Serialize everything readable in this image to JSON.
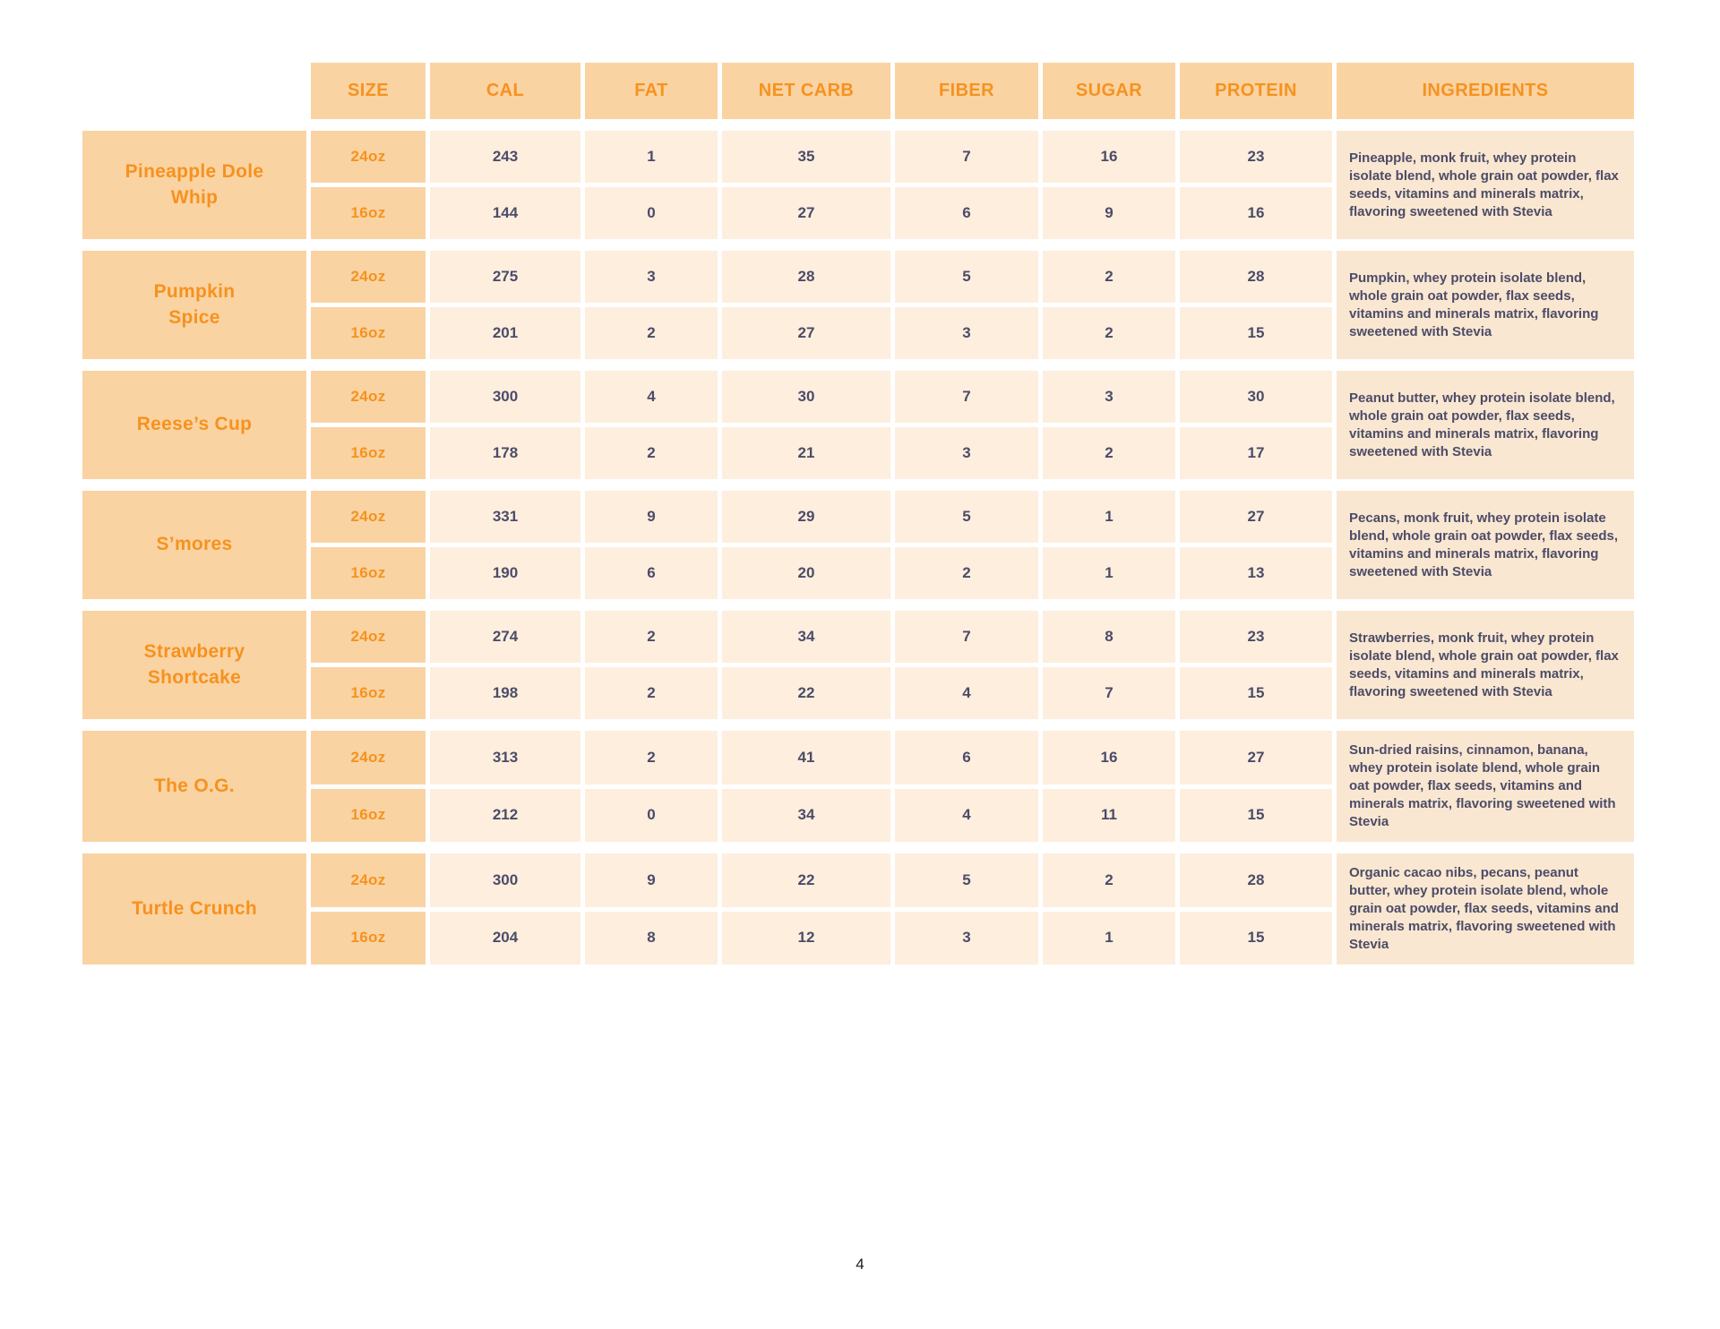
{
  "page": {
    "number": "4"
  },
  "colors": {
    "peach_medium": "#FAD3A3",
    "peach_light": "#FDEEDE",
    "peach_ingredients": "#FAE7D1",
    "orange_text": "#F6921E",
    "slate_text": "#4C4C68"
  },
  "table": {
    "columns": [
      "SIZE",
      "CAL",
      "FAT",
      "NET CARB",
      "FIBER",
      "SUGAR",
      "PROTEIN",
      "INGREDIENTS"
    ],
    "rows": [
      {
        "name": "Pineapple Dole\nWhip",
        "sizes": [
          {
            "size": "24oz",
            "cal": 243,
            "fat": 1,
            "net_carb": 35,
            "fiber": 7,
            "sugar": 16,
            "protein": 23
          },
          {
            "size": "16oz",
            "cal": 144,
            "fat": 0,
            "net_carb": 27,
            "fiber": 6,
            "sugar": 9,
            "protein": 16
          }
        ],
        "ingredients": "Pineapple, monk fruit, whey protein isolate blend, whole grain oat powder, flax seeds, vitamins and minerals matrix, flavoring sweetened with Stevia"
      },
      {
        "name": "Pumpkin\nSpice",
        "sizes": [
          {
            "size": "24oz",
            "cal": 275,
            "fat": 3,
            "net_carb": 28,
            "fiber": 5,
            "sugar": 2,
            "protein": 28
          },
          {
            "size": "16oz",
            "cal": 201,
            "fat": 2,
            "net_carb": 27,
            "fiber": 3,
            "sugar": 2,
            "protein": 15
          }
        ],
        "ingredients": "Pumpkin, whey protein isolate blend, whole grain oat powder, flax seeds, vitamins and minerals matrix, flavoring sweetened with Stevia"
      },
      {
        "name": "Reese’s Cup",
        "sizes": [
          {
            "size": "24oz",
            "cal": 300,
            "fat": 4,
            "net_carb": 30,
            "fiber": 7,
            "sugar": 3,
            "protein": 30
          },
          {
            "size": "16oz",
            "cal": 178,
            "fat": 2,
            "net_carb": 21,
            "fiber": 3,
            "sugar": 2,
            "protein": 17
          }
        ],
        "ingredients": "Peanut butter, whey protein isolate blend, whole grain oat powder, flax seeds, vitamins and minerals matrix, flavoring sweetened with Stevia"
      },
      {
        "name": "S’mores",
        "sizes": [
          {
            "size": "24oz",
            "cal": 331,
            "fat": 9,
            "net_carb": 29,
            "fiber": 5,
            "sugar": 1,
            "protein": 27
          },
          {
            "size": "16oz",
            "cal": 190,
            "fat": 6,
            "net_carb": 20,
            "fiber": 2,
            "sugar": 1,
            "protein": 13
          }
        ],
        "ingredients": "Pecans, monk fruit, whey protein isolate blend, whole grain oat powder, flax seeds, vitamins and minerals matrix, flavoring sweetened with Stevia"
      },
      {
        "name": "Strawberry\nShortcake",
        "sizes": [
          {
            "size": "24oz",
            "cal": 274,
            "fat": 2,
            "net_carb": 34,
            "fiber": 7,
            "sugar": 8,
            "protein": 23
          },
          {
            "size": "16oz",
            "cal": 198,
            "fat": 2,
            "net_carb": 22,
            "fiber": 4,
            "sugar": 7,
            "protein": 15
          }
        ],
        "ingredients": "Strawberries, monk fruit, whey protein isolate blend, whole grain oat powder, flax seeds, vitamins and minerals matrix, flavoring sweetened with Stevia"
      },
      {
        "name": "The O.G.",
        "sizes": [
          {
            "size": "24oz",
            "cal": 313,
            "fat": 2,
            "net_carb": 41,
            "fiber": 6,
            "sugar": 16,
            "protein": 27
          },
          {
            "size": "16oz",
            "cal": 212,
            "fat": 0,
            "net_carb": 34,
            "fiber": 4,
            "sugar": 11,
            "protein": 15
          }
        ],
        "ingredients": "Sun-dried raisins, cinnamon, banana, whey protein isolate blend, whole grain oat powder, flax seeds, vitamins and minerals matrix, flavoring sweetened with Stevia"
      },
      {
        "name": "Turtle Crunch",
        "sizes": [
          {
            "size": "24oz",
            "cal": 300,
            "fat": 9,
            "net_carb": 22,
            "fiber": 5,
            "sugar": 2,
            "protein": 28
          },
          {
            "size": "16oz",
            "cal": 204,
            "fat": 8,
            "net_carb": 12,
            "fiber": 3,
            "sugar": 1,
            "protein": 15
          }
        ],
        "ingredients": "Organic cacao nibs, pecans, peanut butter, whey protein isolate blend, whole grain oat powder, flax seeds, vitamins and minerals matrix, flavoring sweetened with Stevia"
      }
    ]
  }
}
